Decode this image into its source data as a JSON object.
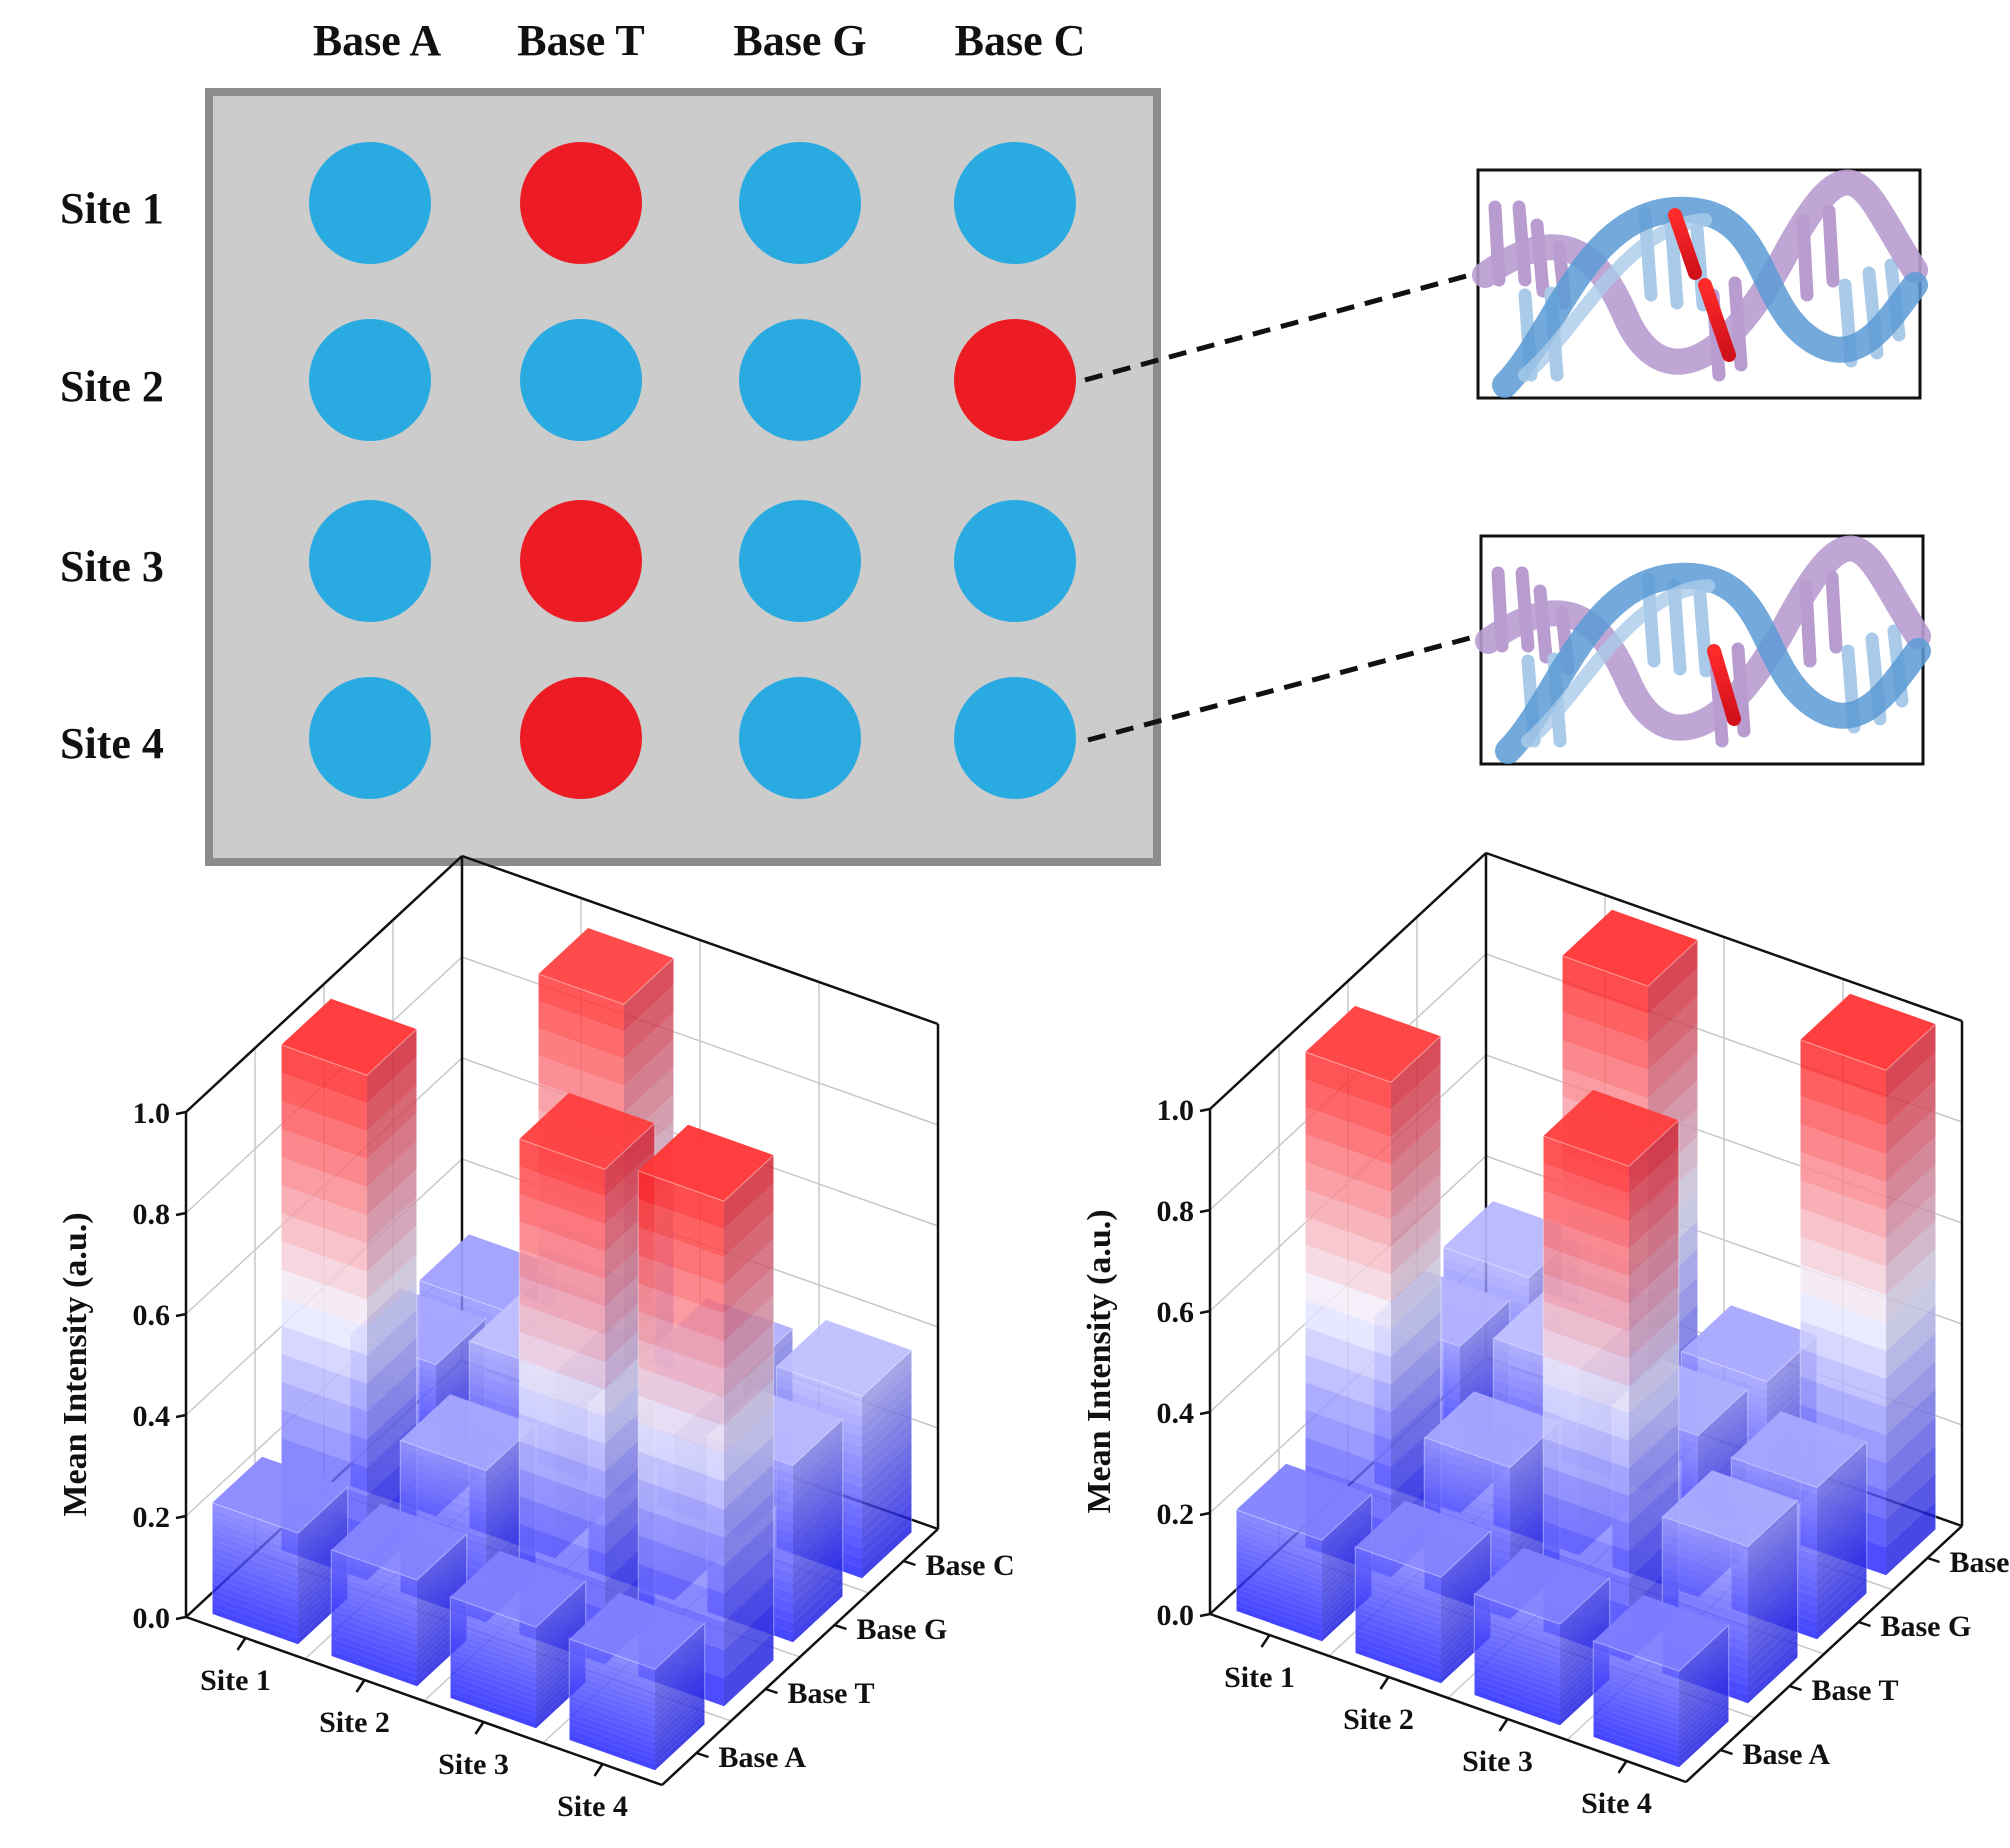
{
  "array": {
    "bases": [
      "Base A",
      "Base T",
      "Base G",
      "Base C"
    ],
    "sites": [
      "Site 1",
      "Site 2",
      "Site 3",
      "Site 4"
    ],
    "spots": [
      [
        "blue",
        "red",
        "blue",
        "blue"
      ],
      [
        "blue",
        "blue",
        "blue",
        "red"
      ],
      [
        "blue",
        "red",
        "blue",
        "blue"
      ],
      [
        "blue",
        "red",
        "blue",
        "blue"
      ]
    ],
    "dna_callouts": [
      {
        "from_site": "Site 2",
        "from_base": "Base C",
        "highlight": "double"
      },
      {
        "from_site": "Site 4",
        "from_base": "Base C",
        "highlight": "single"
      }
    ]
  },
  "colors": {
    "spot_blue": "#29abe2",
    "spot_red": "#ed1c24",
    "panel_fill": "#cccccc",
    "panel_border": "#8c8c8c",
    "bar_high": "#ff1a1a",
    "bar_mid": "#f2f2ff",
    "bar_low": "#1a1aff",
    "dna_purple": "#b99ccf",
    "dna_blue": "#a9cbe9",
    "dna_backbone_blue": "#5b9bd5"
  },
  "chart_data": [
    {
      "type": "bar3d",
      "ylabel": "Mean Intensity (a.u.)",
      "zlim": [
        0,
        1.0
      ],
      "zticks": [
        "0.0",
        "0.2",
        "0.4",
        "0.6",
        "0.8",
        "1.0"
      ],
      "x_categories": [
        "Site 1",
        "Site 2",
        "Site 3",
        "Site 4"
      ],
      "y_categories": [
        "Base A",
        "Base T",
        "Base G",
        "Base C"
      ],
      "values": [
        [
          0.22,
          1.0,
          0.3,
          0.28
        ],
        [
          0.21,
          0.3,
          0.37,
          0.97
        ],
        [
          0.2,
          0.98,
          0.33,
          0.32
        ],
        [
          0.2,
          1.0,
          0.35,
          0.36
        ]
      ],
      "grid": true
    },
    {
      "type": "bar3d",
      "ylabel": "Mean Intensity (a.u.)",
      "zlim": [
        0,
        1.0
      ],
      "zticks": [
        "0.0",
        "0.2",
        "0.4",
        "0.6",
        "0.8",
        "1.0"
      ],
      "x_categories": [
        "Site 1",
        "Site 2",
        "Site 3",
        "Site 4"
      ],
      "y_categories": [
        "Base A",
        "Base T",
        "Base G",
        "Base C"
      ],
      "values": [
        [
          0.2,
          0.98,
          0.33,
          0.34
        ],
        [
          0.21,
          0.3,
          0.37,
          1.0
        ],
        [
          0.2,
          0.98,
          0.32,
          0.3
        ],
        [
          0.19,
          0.31,
          0.3,
          1.0
        ]
      ],
      "grid": true
    }
  ]
}
